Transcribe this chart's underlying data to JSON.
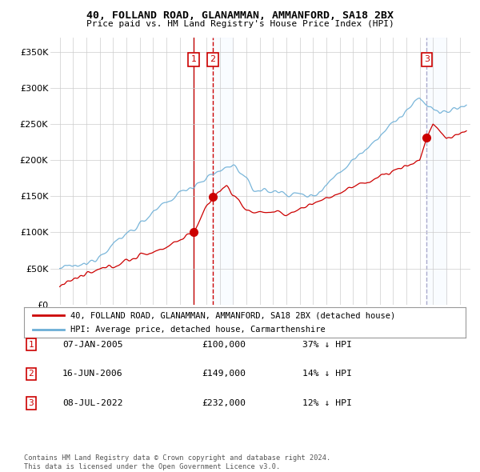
{
  "title": "40, FOLLAND ROAD, GLANAMMAN, AMMANFORD, SA18 2BX",
  "subtitle": "Price paid vs. HM Land Registry's House Price Index (HPI)",
  "legend_line1": "40, FOLLAND ROAD, GLANAMMAN, AMMANFORD, SA18 2BX (detached house)",
  "legend_line2": "HPI: Average price, detached house, Carmarthenshire",
  "ylabel_ticks": [
    "£0",
    "£50K",
    "£100K",
    "£150K",
    "£200K",
    "£250K",
    "£300K",
    "£350K"
  ],
  "ytick_values": [
    0,
    50000,
    100000,
    150000,
    200000,
    250000,
    300000,
    350000
  ],
  "ylim": [
    0,
    370000
  ],
  "transactions": [
    {
      "num": 1,
      "date": "07-JAN-2005",
      "price": 100000,
      "hpi_diff": "37% ↓ HPI",
      "x": 2005.03,
      "vline_style": "solid",
      "vline_color": "#cc0000",
      "shade": false
    },
    {
      "num": 2,
      "date": "16-JUN-2006",
      "price": 149000,
      "hpi_diff": "14% ↓ HPI",
      "x": 2006.46,
      "vline_style": "dashed",
      "vline_color": "#cc0000",
      "shade": true
    },
    {
      "num": 3,
      "date": "08-JUL-2022",
      "price": 232000,
      "hpi_diff": "12% ↓ HPI",
      "x": 2022.52,
      "vline_style": "dashed",
      "vline_color": "#aaaacc",
      "shade": true
    }
  ],
  "hpi_color": "#6baed6",
  "price_color": "#cc0000",
  "box_color": "#cc0000",
  "shade_color": "#ddeeff",
  "footer1": "Contains HM Land Registry data © Crown copyright and database right 2024.",
  "footer2": "This data is licensed under the Open Government Licence v3.0.",
  "background_color": "#ffffff",
  "grid_color": "#cccccc"
}
